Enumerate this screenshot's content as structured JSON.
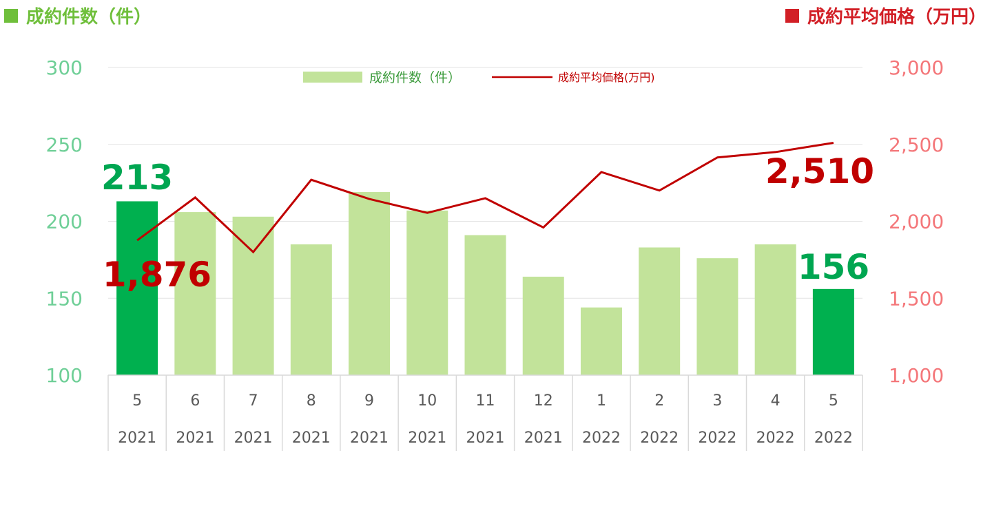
{
  "header": {
    "left_title": "成約件数（件）",
    "right_title": "成約平均価格（万円）",
    "left_color": "#6fbf3b",
    "right_color": "#d21f26"
  },
  "chart_data": {
    "type": "bar",
    "categories": [
      {
        "month": "5",
        "year": "2021"
      },
      {
        "month": "6",
        "year": "2021"
      },
      {
        "month": "7",
        "year": "2021"
      },
      {
        "month": "8",
        "year": "2021"
      },
      {
        "month": "9",
        "year": "2021"
      },
      {
        "month": "10",
        "year": "2021"
      },
      {
        "month": "11",
        "year": "2021"
      },
      {
        "month": "12",
        "year": "2021"
      },
      {
        "month": "1",
        "year": "2022"
      },
      {
        "month": "2",
        "year": "2022"
      },
      {
        "month": "3",
        "year": "2022"
      },
      {
        "month": "4",
        "year": "2022"
      },
      {
        "month": "5",
        "year": "2022"
      }
    ],
    "series": [
      {
        "name": "成約件数（件）",
        "type": "bar",
        "axis": "left",
        "values": [
          213,
          206,
          203,
          185,
          219,
          207,
          191,
          164,
          144,
          183,
          176,
          185,
          156
        ],
        "color": "#c2e39a",
        "highlight_color": "#00b04f",
        "highlight_indices": [
          0,
          12
        ]
      },
      {
        "name": "成約平均価格(万円)",
        "type": "line",
        "axis": "right",
        "values": [
          1876,
          2155,
          1800,
          2270,
          2145,
          2055,
          2150,
          1960,
          2320,
          2200,
          2415,
          2450,
          2510
        ],
        "color": "#c00000"
      }
    ],
    "left_axis": {
      "ylim": [
        100,
        300
      ],
      "ticks": [
        "100",
        "150",
        "200",
        "250",
        "300"
      ],
      "color": "#6fcf97"
    },
    "right_axis": {
      "ylim": [
        1000,
        3000
      ],
      "ticks": [
        "1,000",
        "1,500",
        "2,000",
        "2,500",
        "3,000"
      ],
      "color": "#f4777a"
    },
    "data_labels": {
      "first_count": "213",
      "last_count": "156",
      "first_price": "1,876",
      "last_price": "2,510"
    },
    "legend": {
      "bar_label": "成約件数（件）",
      "line_label": "成約平均価格(万円)",
      "placement": "top-center"
    },
    "grid": true
  }
}
